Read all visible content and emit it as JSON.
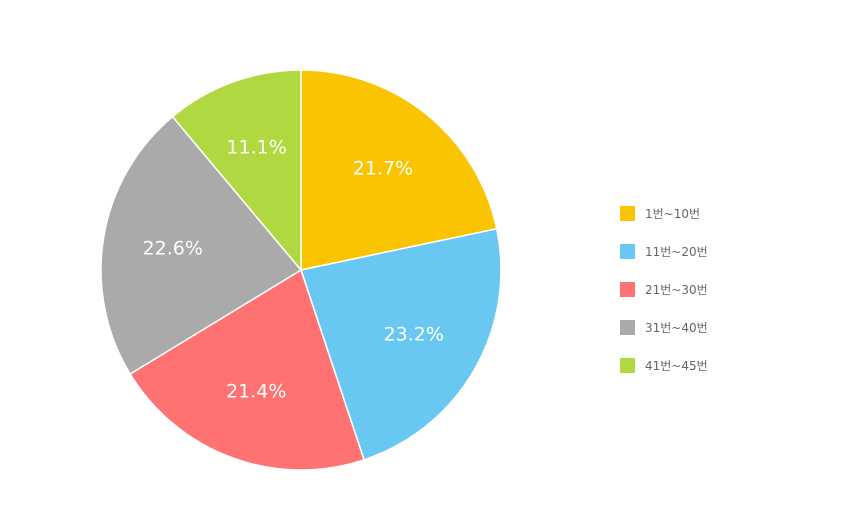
{
  "chart_data": {
    "type": "pie",
    "categories": [
      "1번~10번",
      "11번~20번",
      "21번~30번",
      "31번~40번",
      "41번~45번"
    ],
    "values": [
      21.7,
      23.2,
      21.4,
      22.6,
      11.1
    ],
    "labels": [
      "21.7%",
      "23.2%",
      "21.4%",
      "22.6%",
      "11.1%"
    ],
    "colors": [
      "#fbc400",
      "#69c8f2",
      "#ff7272",
      "#aaaaaa",
      "#b0d840"
    ],
    "start_angle": "top (12 o'clock), clockwise",
    "legend": "right"
  }
}
